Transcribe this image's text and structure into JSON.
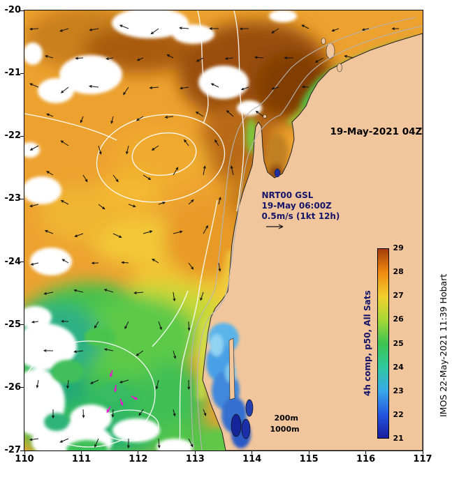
{
  "labels": {
    "timestamp": "19-May-2021 04Z",
    "model_line1": "NRT00 GSL",
    "model_line2": "19-May 06:00Z",
    "model_line3": "0.5m/s (1kt 12h)",
    "depth_200": "200m",
    "depth_1000": "1000m",
    "credit": "IMOS 22-May-2021 11:39  Hobart"
  },
  "colorbar": {
    "label": "4h comp, p50, All Sats",
    "ticks": [
      "29",
      "28",
      "27",
      "26",
      "25",
      "24",
      "23",
      "22",
      "21"
    ],
    "colors_bottom_to_top": [
      "#181c9e",
      "#2457e0",
      "#38a8e8",
      "#2fc9a0",
      "#3cc44f",
      "#a8d838",
      "#f3d02e",
      "#f08a12",
      "#a33c08"
    ]
  },
  "axes": {
    "x_ticks": [
      "110",
      "111",
      "112",
      "113",
      "114",
      "115",
      "116",
      "117"
    ],
    "y_ticks": [
      "-20",
      "-21",
      "-22",
      "-23",
      "-24",
      "-25",
      "-26",
      "-27"
    ]
  },
  "map_colors": {
    "land": "#f2c69c",
    "warmest_sst": "#823c04",
    "coldest_pool": "#16249a",
    "vector_color": "#141414",
    "drifter_color": "#ee12d0"
  }
}
